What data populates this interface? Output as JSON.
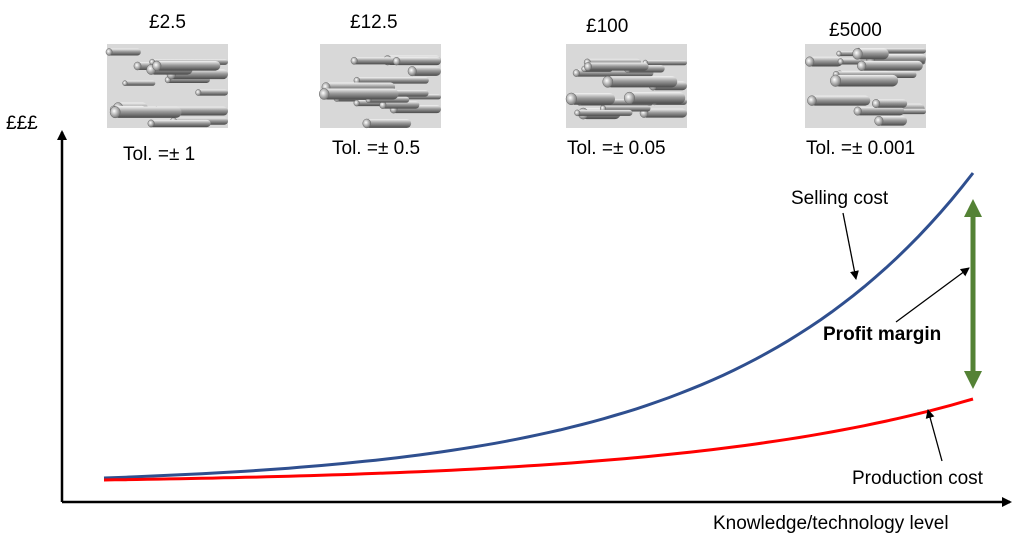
{
  "axes": {
    "y_label": "£££",
    "x_label": "Knowledge/technology level"
  },
  "products": [
    {
      "price": "£2.5",
      "tolerance": "Tol. =± 1"
    },
    {
      "price": "£12.5",
      "tolerance": "Tol. =± 0.5"
    },
    {
      "price": "£100",
      "tolerance": "Tol. =± 0.05"
    },
    {
      "price": "£5000",
      "tolerance": "Tol. =± 0.001"
    }
  ],
  "labels": {
    "selling": "Selling cost",
    "production": "Production cost",
    "profit": "Profit margin"
  },
  "colors": {
    "selling": "#2f4f8f",
    "production": "#ff0000",
    "profit": "#548235",
    "axis": "#000000"
  },
  "icon": "steel-rods-image"
}
